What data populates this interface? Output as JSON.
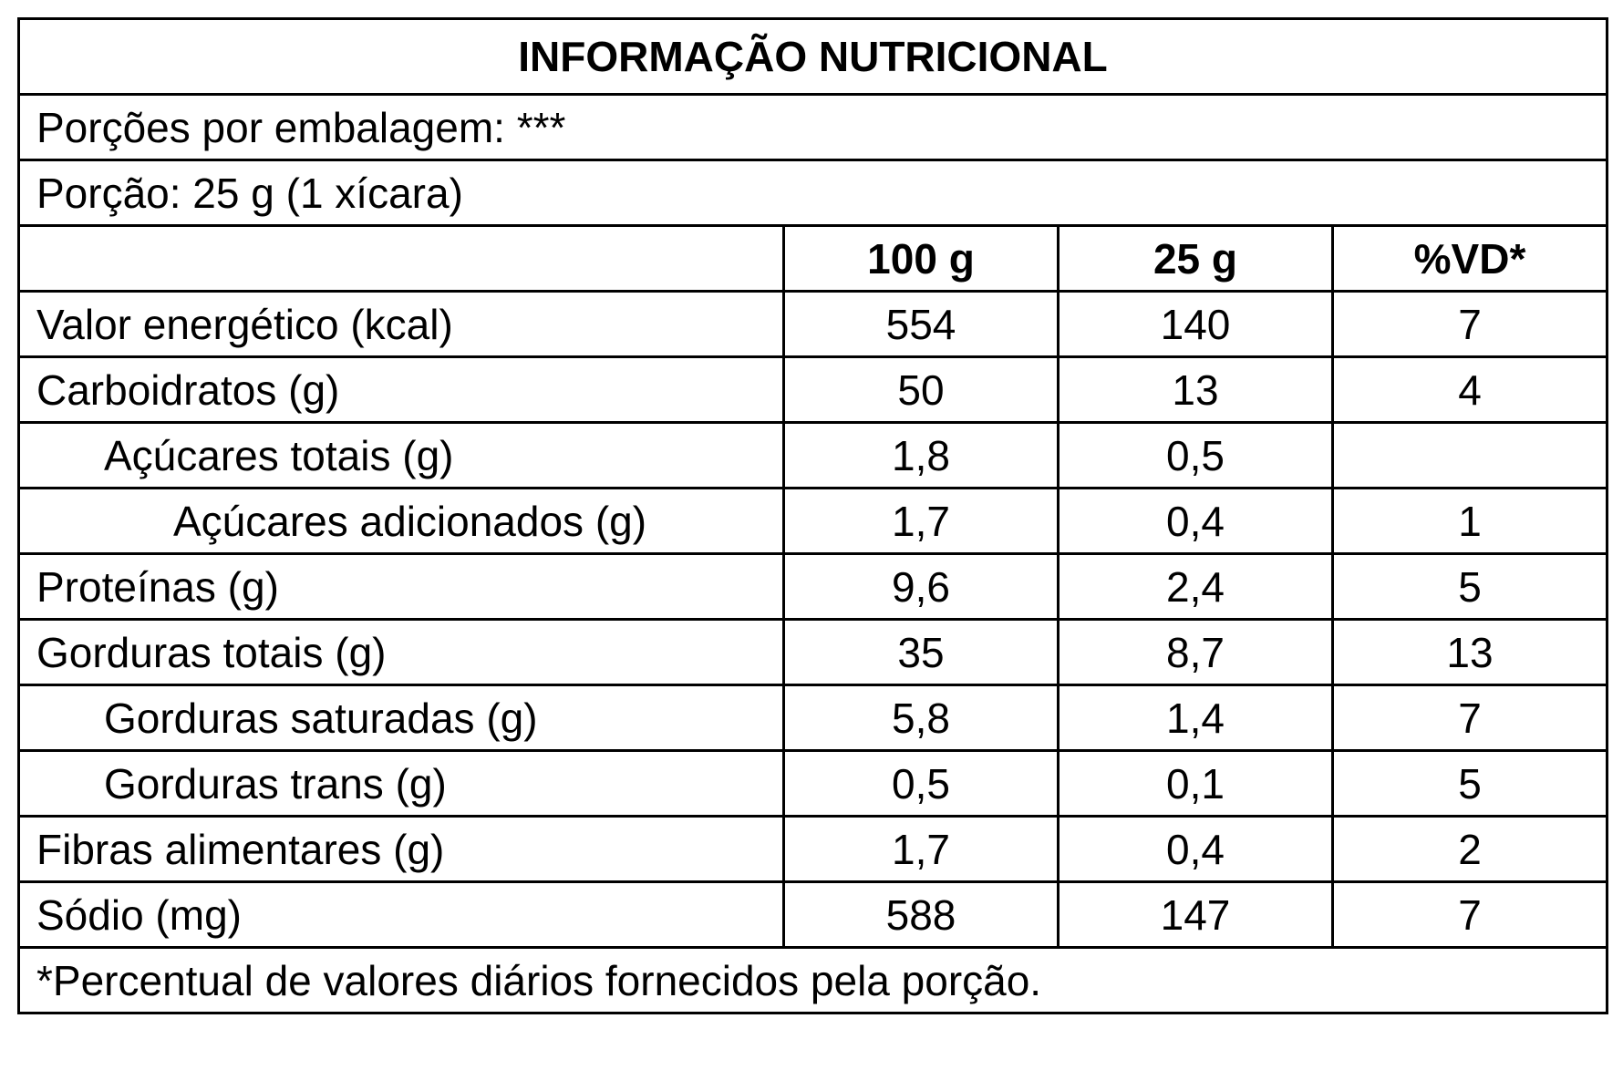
{
  "title": "INFORMAÇÃO NUTRICIONAL",
  "servings_per_package": "Porções por embalagem: ***",
  "serving_size": "Porção: 25 g (1 xícara)",
  "columns": [
    "",
    "100 g",
    "25 g",
    "%VD*"
  ],
  "rows": [
    {
      "name": "Valor energético (kcal)",
      "per100": "554",
      "perServing": "140",
      "dv": "7",
      "indent": 0
    },
    {
      "name": "Carboidratos (g)",
      "per100": "50",
      "perServing": "13",
      "dv": "4",
      "indent": 0
    },
    {
      "name": "Açúcares totais (g)",
      "per100": "1,8",
      "perServing": "0,5",
      "dv": "",
      "indent": 1
    },
    {
      "name": "Açúcares adicionados (g)",
      "per100": "1,7",
      "perServing": "0,4",
      "dv": "1",
      "indent": 2
    },
    {
      "name": "Proteínas (g)",
      "per100": "9,6",
      "perServing": "2,4",
      "dv": "5",
      "indent": 0
    },
    {
      "name": "Gorduras totais (g)",
      "per100": "35",
      "perServing": "8,7",
      "dv": "13",
      "indent": 0
    },
    {
      "name": "Gorduras saturadas (g)",
      "per100": "5,8",
      "perServing": "1,4",
      "dv": "7",
      "indent": 1
    },
    {
      "name": "Gorduras trans (g)",
      "per100": "0,5",
      "perServing": "0,1",
      "dv": "5",
      "indent": 1
    },
    {
      "name": "Fibras alimentares (g)",
      "per100": "1,7",
      "perServing": "0,4",
      "dv": "2",
      "indent": 0
    },
    {
      "name": "Sódio (mg)",
      "per100": "588",
      "perServing": "147",
      "dv": "7",
      "indent": 0
    }
  ],
  "footnote": "*Percentual de valores diários fornecidos pela porção.",
  "colors": {
    "border": "#000000",
    "background": "#ffffff",
    "text": "#000000"
  }
}
